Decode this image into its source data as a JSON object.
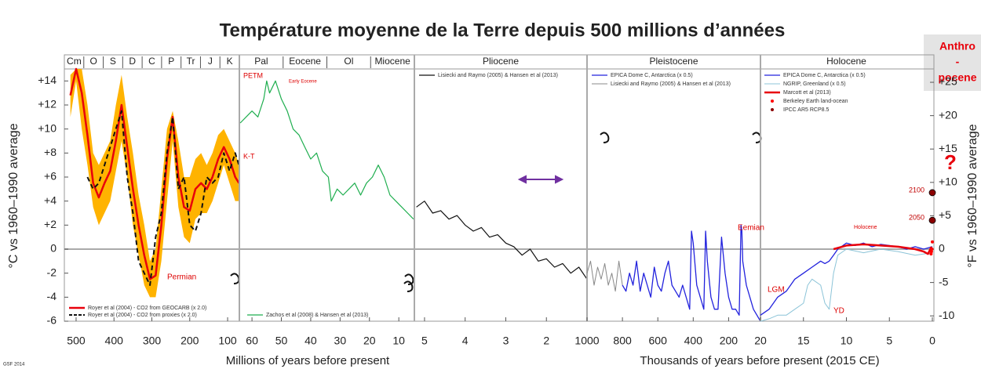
{
  "chart_data": {
    "type": "line",
    "title": "Température moyenne de la Terre depuis 500 millions d’années",
    "ylabel": "°C vs 1960–1990 average",
    "y2label": "°F vs 1960–1990 average",
    "ylim": [
      -6,
      15
    ],
    "yticks": [
      -6,
      -4,
      -2,
      0,
      {
        "value": 2,
        "label": "+2"
      },
      {
        "value": 4,
        "label": "+4"
      },
      {
        "value": 6,
        "label": "+6"
      },
      {
        "value": 8,
        "label": "+8"
      },
      {
        "value": 10,
        "label": "+10"
      },
      {
        "value": 12,
        "label": "+12"
      },
      {
        "value": 14,
        "label": "+14"
      }
    ],
    "y2lim": [
      -10.8,
      27
    ],
    "y2ticks": [
      -10,
      -5,
      0,
      {
        "value": 5,
        "label": "+5"
      },
      {
        "value": 10,
        "label": "+10"
      },
      {
        "value": 15,
        "label": "+15"
      },
      {
        "value": 20,
        "label": "+20"
      },
      {
        "value": 25,
        "label": "+25"
      }
    ],
    "zero_line": true,
    "xlabels": [
      "Millions of years before present",
      "Thousands of years before present (2015 CE)"
    ],
    "anthropocene": [
      "Anthro",
      "-",
      "pocene"
    ],
    "annotations": [
      "PETM",
      "Early Eocene",
      "K-T",
      "Permian",
      "Eemian",
      "LGM",
      "YD",
      "Holocene",
      "?"
    ],
    "footer": "GSF 2014",
    "panels": [
      {
        "xlim": [
          531,
          69
        ],
        "xticks": [
          500,
          400,
          300,
          200,
          100
        ],
        "periods": [
          "Cm",
          "O",
          "S",
          "D",
          "C",
          "P",
          "Tr",
          "J",
          "K"
        ],
        "legend": "lower left",
        "band": {
          "color": "#ffb300",
          "x": [
            515,
            500,
            485,
            470,
            455,
            440,
            425,
            410,
            395,
            380,
            365,
            350,
            335,
            320,
            305,
            290,
            275,
            260,
            245,
            230,
            215,
            200,
            185,
            170,
            155,
            140,
            125,
            110,
            95,
            80,
            70
          ],
          "upper": [
            14.5,
            15,
            15,
            12,
            8,
            7,
            8,
            9,
            12,
            14.5,
            11,
            8,
            4.5,
            2,
            -1,
            0,
            5,
            10,
            11.5,
            9,
            6,
            6,
            7.5,
            8,
            7,
            8,
            9.5,
            10,
            9,
            8,
            7
          ],
          "lower": [
            11,
            14,
            10,
            7,
            3.5,
            2,
            3,
            4,
            6.5,
            9,
            6,
            2,
            -0.5,
            -3,
            -4,
            -4,
            -1,
            4,
            9,
            3.5,
            1,
            0.5,
            2.5,
            3,
            3,
            4,
            5.5,
            7,
            5.5,
            4,
            4
          ]
        },
        "series": [
          {
            "name": "Royer et al (2004) - CO2 from GEOCARB (x 2.0)",
            "color": "#e8000b",
            "line_width": 2.5,
            "x": [
              515,
              500,
              485,
              470,
              455,
              440,
              425,
              410,
              395,
              380,
              365,
              350,
              335,
              320,
              305,
              290,
              275,
              260,
              245,
              230,
              215,
              200,
              185,
              170,
              155,
              140,
              125,
              110,
              95,
              80,
              70
            ],
            "values": [
              12.8,
              15,
              13,
              9.5,
              5.5,
              4.3,
              5.5,
              6.5,
              9,
              12,
              8.5,
              5,
              2,
              -0.5,
              -2.5,
              -2.2,
              2,
              7.5,
              11,
              6,
              3.5,
              3.2,
              5,
              5.5,
              5,
              6,
              7.5,
              8.5,
              7.5,
              6,
              5.5
            ]
          },
          {
            "name": "Royer et al (2004) - CO2 from proxies (x 2.0)",
            "color": "#111111",
            "line_width": 2,
            "dashed": true,
            "x": [
              515,
              500,
              485,
              470,
              455,
              440,
              425,
              410,
              395,
              380,
              365,
              350,
              335,
              320,
              305,
              290,
              275,
              260,
              245,
              230,
              215,
              200,
              185,
              170,
              155,
              140,
              125,
              110,
              95,
              80,
              70
            ],
            "values": [
              null,
              null,
              null,
              6,
              5,
              5.5,
              7,
              8.5,
              10,
              11.5,
              6,
              3,
              -1,
              -2,
              -3,
              1,
              3,
              8,
              11,
              5,
              6,
              2,
              1.5,
              3,
              6,
              5.5,
              6,
              8,
              6.5,
              8,
              7
            ]
          }
        ]
      },
      {
        "xlim": [
          64.3,
          4.7
        ],
        "xticks": [
          60,
          50,
          40,
          30,
          20,
          10
        ],
        "periods": [
          "Pal",
          "Eocene",
          "Ol",
          "Miocene"
        ],
        "legend": "lower left",
        "series": [
          {
            "name": "Zachos et al (2008) & Hansen et al (2013)",
            "color": "#1fae4f",
            "line_width": 1.2,
            "x": [
              64,
              62,
              60,
              58,
              56,
              55,
              54,
              52,
              50,
              48,
              46,
              44,
              42,
              40,
              38,
              36,
              34,
              33,
              31,
              29,
              27,
              25,
              23,
              21,
              19,
              17,
              15,
              13,
              11,
              9,
              7,
              5
            ],
            "values": [
              10.5,
              11,
              11.5,
              11,
              12.5,
              14,
              13,
              14,
              12.5,
              11.5,
              10,
              9.5,
              8.5,
              7.5,
              8,
              6.5,
              6,
              4,
              5,
              4.5,
              5,
              5.5,
              4.5,
              5.5,
              6,
              7,
              6,
              4.5,
              4,
              3.5,
              3,
              2.5
            ]
          }
        ]
      },
      {
        "xlim": [
          5.25,
          1
        ],
        "xticks": [
          5,
          4,
          3,
          2
        ],
        "periods": [
          "Pliocene"
        ],
        "legend": "upper left",
        "series": [
          {
            "name": "Lisiecki and Raymo (2005) & Hansen et al (2013)",
            "color": "#111111",
            "line_width": 1.2,
            "x": [
              5.2,
              5,
              4.8,
              4.6,
              4.4,
              4.2,
              4,
              3.8,
              3.6,
              3.4,
              3.2,
              3,
              2.8,
              2.6,
              2.4,
              2.2,
              2,
              1.8,
              1.6,
              1.4,
              1.2,
              1
            ],
            "values": [
              3.5,
              4,
              3,
              3.2,
              2.5,
              2.8,
              2,
              1.5,
              1.8,
              1,
              1.2,
              0.5,
              0.2,
              -0.5,
              0,
              -1,
              -0.8,
              -1.5,
              -1.2,
              -2,
              -1.5,
              -2.5
            ]
          }
        ]
      },
      {
        "xlim": [
          1000,
          20
        ],
        "xticks": [
          1000,
          800,
          600,
          400,
          200
        ],
        "periods": [
          "Pleistocene"
        ],
        "legend": "upper left",
        "series": [
          {
            "name": "EPICA Dome C, Antarctica (x 0.5)",
            "color": "#2222dd",
            "line_width": 1.3,
            "x": [
              800,
              780,
              760,
              740,
              720,
              700,
              680,
              660,
              640,
              620,
              600,
              580,
              560,
              540,
              520,
              500,
              480,
              460,
              440,
              420,
              410,
              400,
              380,
              360,
              340,
              330,
              320,
              300,
              280,
              260,
              240,
              220,
              200,
              180,
              160,
              140,
              130,
              125,
              120,
              100,
              80,
              60,
              40,
              20
            ],
            "values": [
              -3,
              -3.5,
              -2,
              -3,
              -1,
              -3.5,
              -2,
              -3,
              -4,
              -1.5,
              -3,
              -3.5,
              -2,
              -1,
              -3,
              -3.5,
              -4,
              -3,
              -4,
              -5,
              1.5,
              0.5,
              -3,
              -4,
              -5,
              1.5,
              -1,
              -4,
              -5,
              -5,
              1,
              -2,
              -4,
              -5,
              -5,
              -5.5,
              2,
              1.5,
              -1,
              -3,
              -4,
              -5,
              -5.5,
              -6
            ]
          },
          {
            "name": "Lisiecki and Raymo (2005) & Hansen et al (2013)",
            "color": "#888888",
            "line_width": 1,
            "x": [
              1000,
              980,
              960,
              940,
              920,
              900,
              880,
              860,
              840,
              820,
              800
            ],
            "values": [
              -2,
              -1,
              -3,
              -1.5,
              -2.5,
              -1.2,
              -3,
              -2,
              -3.5,
              -1,
              -3
            ]
          }
        ]
      },
      {
        "xlim": [
          20,
          0
        ],
        "xticks": [
          20,
          15,
          10,
          5,
          0
        ],
        "periods": [
          "Holocene"
        ],
        "legend": "upper left",
        "series": [
          {
            "name": "EPICA Dome C, Antarctica (x 0.5)",
            "color": "#2222dd",
            "line_width": 1.3,
            "x": [
              20,
              19,
              18,
              17,
              16,
              15,
              14,
              13,
              12.5,
              12,
              11.5,
              11,
              10,
              9,
              8,
              7,
              6,
              5,
              4,
              3,
              2,
              1,
              0
            ],
            "values": [
              -5.5,
              -5,
              -4,
              -3.5,
              -2.5,
              -2,
              -1.5,
              -1,
              -1.2,
              -1,
              -0.5,
              0,
              0.5,
              0.3,
              0.5,
              0.2,
              0.4,
              0.3,
              0.2,
              0,
              0.2,
              0,
              0.2
            ]
          },
          {
            "name": "NGRIP, Greenland (x 0.5)",
            "color": "#8cc4d8",
            "line_width": 1,
            "x": [
              20,
              19,
              18,
              17,
              16,
              15,
              14.5,
              14,
              13,
              12.5,
              12,
              11.5,
              11,
              10,
              8,
              6,
              4,
              2,
              0
            ],
            "values": [
              -6,
              -5.8,
              -5.5,
              -5.5,
              -5,
              -4.5,
              -3,
              -2.5,
              -3,
              -4.5,
              -5,
              -2,
              -0.5,
              0,
              -0.3,
              0,
              -0.2,
              -0.5,
              -0.3
            ]
          },
          {
            "name": "Marcott et al (2013)",
            "color": "#e8000b",
            "line_width": 2.5,
            "x": [
              11.5,
              10,
              8,
              6,
              4,
              2,
              1,
              0.5,
              0.1
            ],
            "values": [
              0,
              0.3,
              0.4,
              0.3,
              0.2,
              0,
              -0.2,
              -0.4,
              0.2
            ]
          },
          {
            "name": "Berkeley Earth land-ocean",
            "color": "#ff0000",
            "marker": true,
            "x": [
              0.15,
              0.1,
              0.05,
              0
            ],
            "values": [
              -0.4,
              -0.2,
              0,
              0.6
            ]
          },
          {
            "name": "IPCC AR5 RCP8.5",
            "color": "#8b0000",
            "marker": true,
            "x": [
              0,
              0
            ],
            "values": [
              2.4,
              4.7
            ],
            "labels": [
              "2050",
              "2100"
            ]
          }
        ]
      }
    ]
  }
}
